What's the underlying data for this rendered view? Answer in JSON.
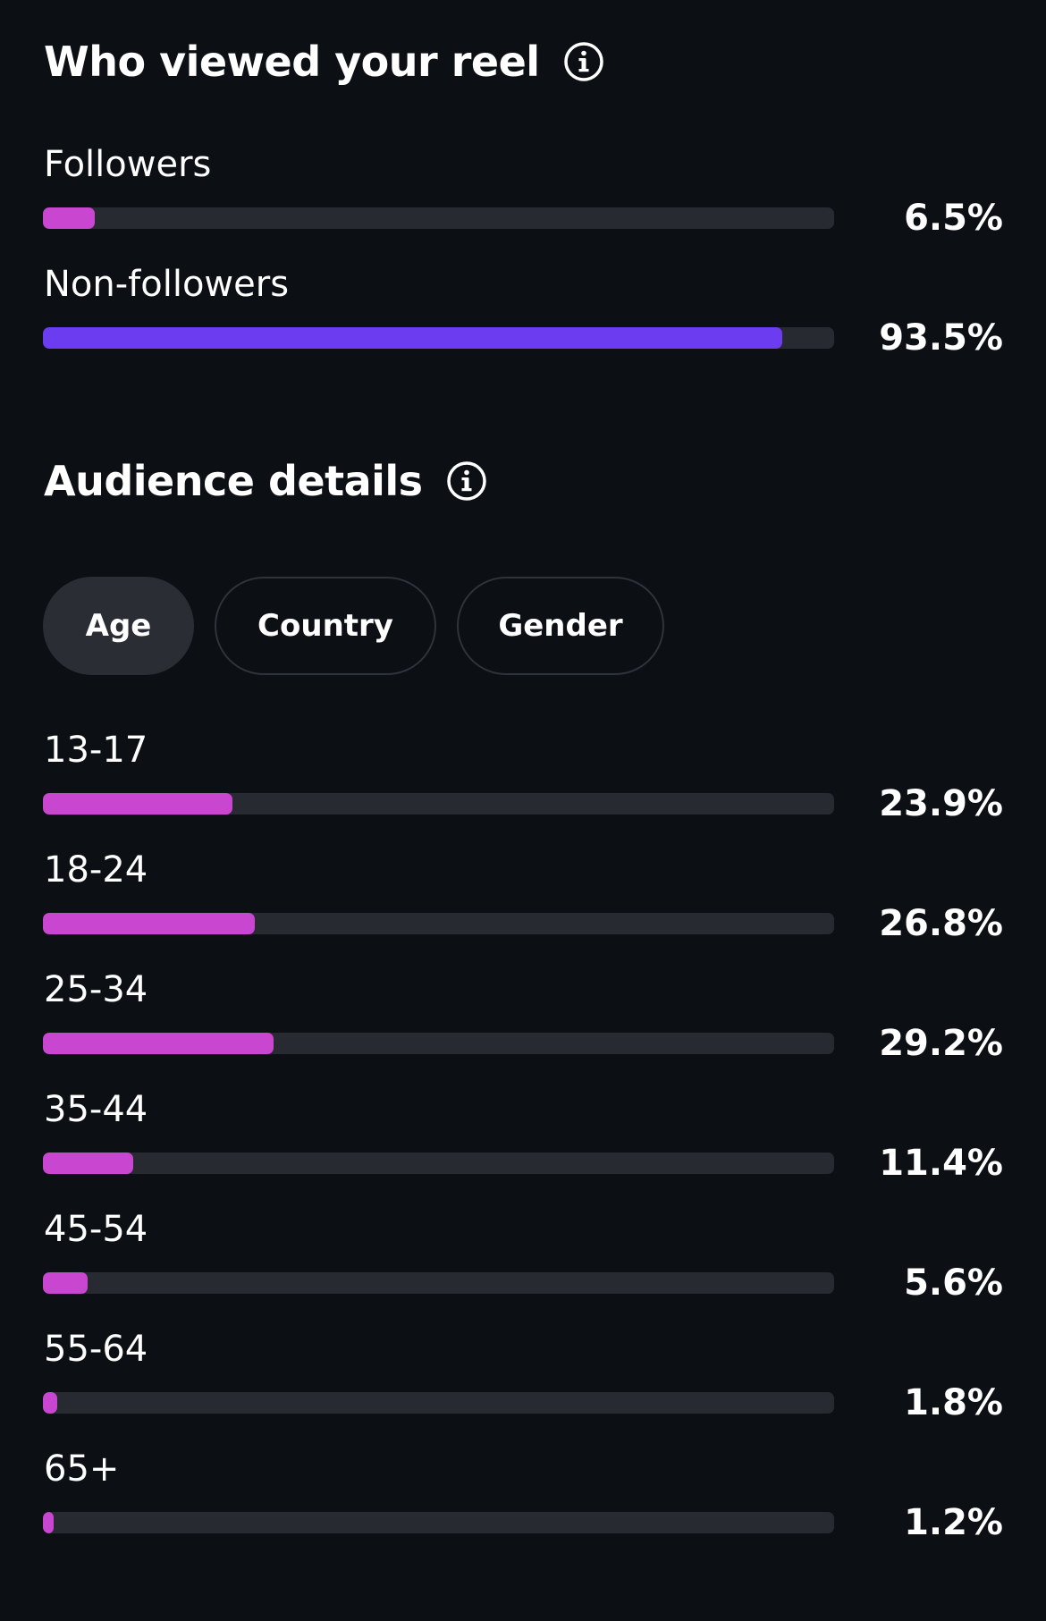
{
  "viewers_section": {
    "title": "Who viewed your reel",
    "info_icon": "info-icon",
    "rows": [
      {
        "label": "Followers",
        "value": "6.5%",
        "fraction": 0.065,
        "color": "#c846d0"
      },
      {
        "label": "Non-followers",
        "value": "93.5%",
        "fraction": 0.935,
        "color": "#6c3cf0"
      }
    ]
  },
  "audience_section": {
    "title": "Audience details",
    "info_icon": "info-icon",
    "tabs": [
      {
        "label": "Age",
        "active": true
      },
      {
        "label": "Country",
        "active": false
      },
      {
        "label": "Gender",
        "active": false
      }
    ],
    "rows": [
      {
        "label": "13-17",
        "value": "23.9%",
        "fraction": 0.239,
        "color": "#c846d0"
      },
      {
        "label": "18-24",
        "value": "26.8%",
        "fraction": 0.268,
        "color": "#c846d0"
      },
      {
        "label": "25-34",
        "value": "29.2%",
        "fraction": 0.292,
        "color": "#c846d0"
      },
      {
        "label": "35-44",
        "value": "11.4%",
        "fraction": 0.114,
        "color": "#c846d0"
      },
      {
        "label": "45-54",
        "value": "5.6%",
        "fraction": 0.056,
        "color": "#c846d0"
      },
      {
        "label": "55-64",
        "value": "1.8%",
        "fraction": 0.018,
        "color": "#c846d0"
      },
      {
        "label": "65+",
        "value": "1.2%",
        "fraction": 0.012,
        "color": "#c846d0"
      }
    ]
  },
  "colors": {
    "background": "#0c0f14",
    "track": "#272a30",
    "followers_bar": "#c846d0",
    "non_followers_bar": "#6c3cf0",
    "active_tab": "#2a2d33"
  }
}
